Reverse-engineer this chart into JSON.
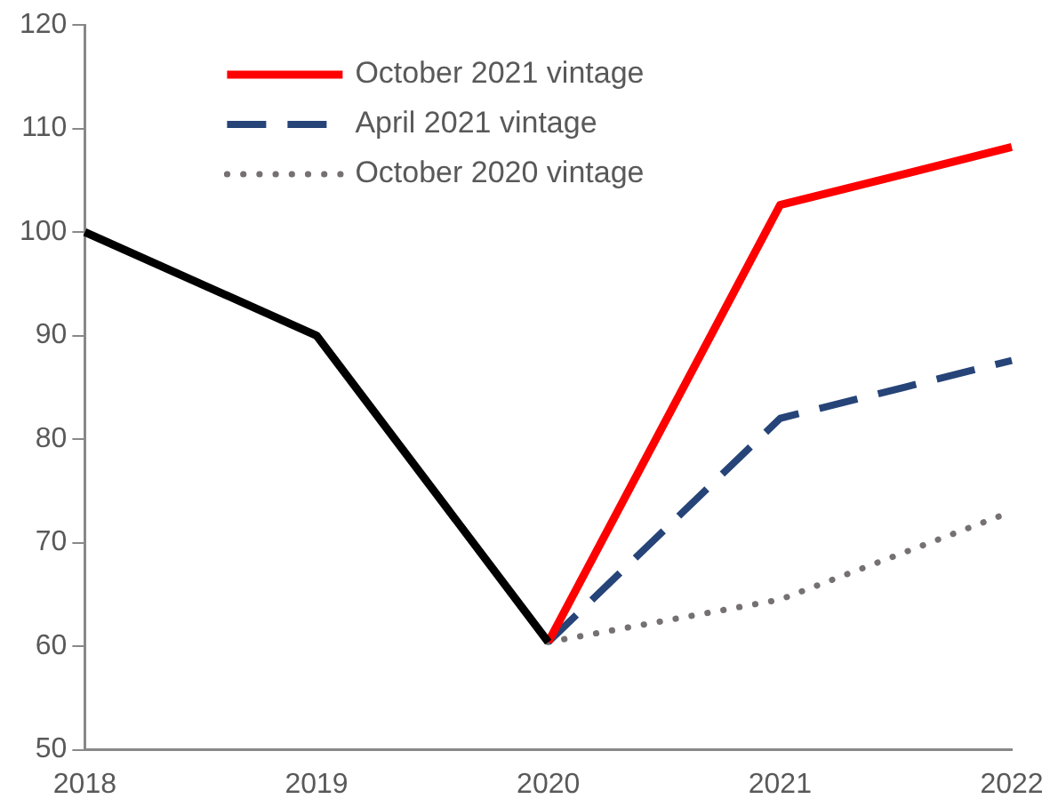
{
  "chart_data": {
    "type": "line",
    "categories": [
      "2018",
      "2019",
      "2020",
      "2021",
      "2022"
    ],
    "ylim": [
      50,
      120
    ],
    "yticks": [
      50,
      60,
      70,
      80,
      90,
      100,
      110,
      120
    ],
    "grid": false,
    "legend": "top left",
    "marker": "none",
    "series": [
      {
        "color": "#000000",
        "values": [
          100,
          90,
          60.4,
          null,
          null
        ],
        "line_style": "solid"
      },
      {
        "name": "October 2021 vintage",
        "color": "#ff0000",
        "values": [
          null,
          null,
          60.4,
          102.6,
          108.2
        ],
        "line_style": "solid"
      },
      {
        "name": "April 2021 vintage",
        "color": "#264478",
        "values": [
          null,
          null,
          60.4,
          82,
          87.6
        ],
        "line_style": "dashed"
      },
      {
        "name": "October 2020 vintage",
        "color": "#767171",
        "values": [
          null,
          null,
          60.4,
          64.5,
          73
        ],
        "line_style": "dotted"
      }
    ]
  }
}
